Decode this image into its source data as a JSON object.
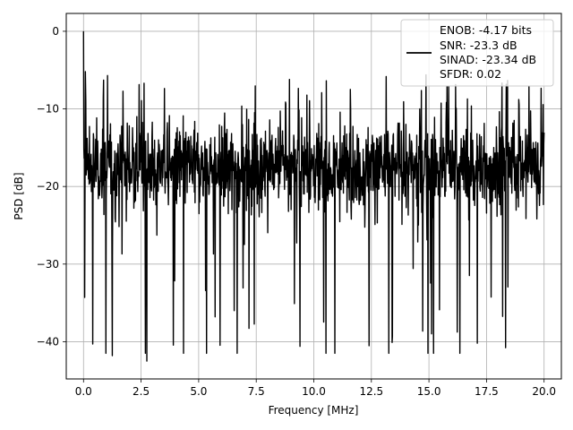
{
  "chart_data": {
    "type": "line",
    "title": "",
    "xlabel": "Frequency [MHz]",
    "ylabel": "PSD [dB]",
    "xlim": [
      -0.75,
      20.75
    ],
    "ylim": [
      -44.8,
      2.3
    ],
    "xticks": [
      0.0,
      2.5,
      5.0,
      7.5,
      10.0,
      12.5,
      15.0,
      17.5,
      20.0
    ],
    "xtick_labels": [
      "0.0",
      "2.5",
      "5.0",
      "7.5",
      "10.0",
      "12.5",
      "15.0",
      "17.5",
      "20.0"
    ],
    "yticks": [
      0,
      -10,
      -20,
      -30,
      -40
    ],
    "ytick_labels": [
      "0",
      "−10",
      "−20",
      "−30",
      "−40"
    ],
    "grid": true,
    "legend_position": "top-right",
    "series": [
      {
        "color": "#000000",
        "noise": {
          "x_range": [
            0,
            20
          ],
          "median_db": -17.5,
          "typical_upper_db": -11.5,
          "typical_lower_db": -25.5,
          "max_db": -5.5,
          "min_db": -42.5
        },
        "notable_points": [
          {
            "x": 0.0,
            "y": 0.0
          },
          {
            "x": 0.05,
            "y": -34.3
          },
          {
            "x": 0.08,
            "y": -5.2
          },
          {
            "x": 0.4,
            "y": -40.3
          },
          {
            "x": 1.25,
            "y": -41.8
          },
          {
            "x": 2.75,
            "y": -42.5
          },
          {
            "x": 9.4,
            "y": -40.6
          },
          {
            "x": 13.4,
            "y": -40.1
          },
          {
            "x": 17.1,
            "y": -40.2
          }
        ]
      }
    ]
  },
  "legend": {
    "lines": [
      "ENOB: -4.17 bits",
      "SNR: -23.3 dB",
      "SINAD: -23.34 dB",
      "SFDR: 0.02"
    ]
  }
}
